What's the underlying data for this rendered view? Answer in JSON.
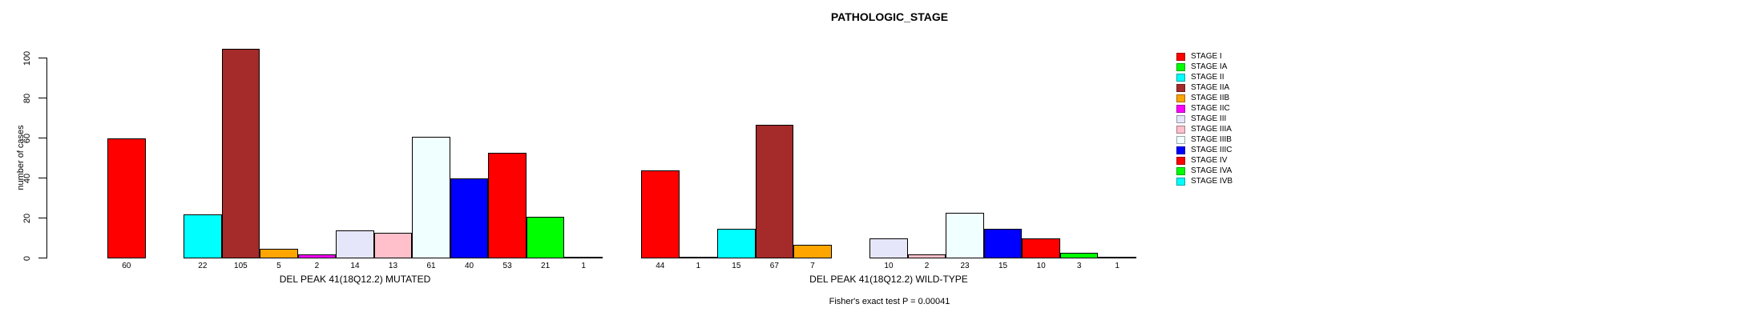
{
  "title": "PATHOLOGIC_STAGE",
  "y_axis": {
    "label": "number of cases",
    "ticks": [
      0,
      20,
      40,
      60,
      80,
      100
    ]
  },
  "footer": "Fisher's exact test P = 0.00041",
  "chart_data": {
    "type": "bar",
    "title": "PATHOLOGIC_STAGE",
    "ylabel": "number of cases",
    "ylim": [
      0,
      100
    ],
    "grid": false,
    "legend_position": "right",
    "categories": [
      "STAGE I",
      "STAGE IA",
      "STAGE II",
      "STAGE IIA",
      "STAGE IIB",
      "STAGE IIC",
      "STAGE III",
      "STAGE IIIA",
      "STAGE IIIB",
      "STAGE IIIC",
      "STAGE IV",
      "STAGE IVA",
      "STAGE IVB"
    ],
    "colors": [
      "#FF0000",
      "#00FF00",
      "#00FFFF",
      "#A52A2A",
      "#FFA500",
      "#FF00FF",
      "#E6E6FA",
      "#FFC0CB",
      "#F0FFFF",
      "#0000FF",
      "#FF0000",
      "#00FF00",
      "#00FFFF"
    ],
    "series": [
      {
        "name": "DEL PEAK 41(18Q12.2) MUTATED",
        "values": [
          60,
          0,
          22,
          105,
          5,
          2,
          14,
          13,
          61,
          40,
          53,
          21,
          1
        ]
      },
      {
        "name": "DEL PEAK 41(18Q12.2) WILD-TYPE",
        "values": [
          44,
          1,
          15,
          67,
          7,
          0,
          10,
          2,
          23,
          15,
          10,
          3,
          1
        ]
      }
    ],
    "bar_label_rule": "value shown under each bar; bars with value 0 are omitted",
    "annotation": "Fisher's exact test P = 0.00041"
  }
}
